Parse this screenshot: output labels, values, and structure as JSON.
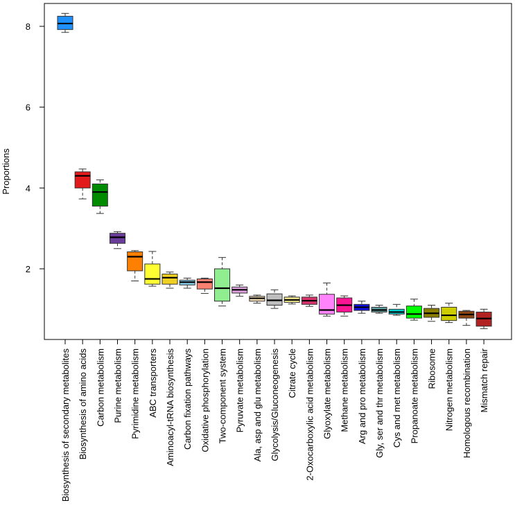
{
  "chart_data": {
    "type": "boxplot",
    "title": "",
    "xlabel": "",
    "ylabel": "Proportions",
    "ylim": [
      0.5,
      8.4
    ],
    "yticks": [
      2,
      4,
      6,
      8
    ],
    "categories": [
      {
        "label": "Biosynthesis of secondary metabolites",
        "color": "#1E90FF",
        "min": 7.85,
        "q1": 7.92,
        "median": 8.07,
        "q3": 8.25,
        "max": 8.32
      },
      {
        "label": "Biosynthesis of amino acids",
        "color": "#E31A1C",
        "min": 3.73,
        "q1": 4.0,
        "median": 4.3,
        "q3": 4.4,
        "max": 4.47
      },
      {
        "label": "Carbon metabolism",
        "color": "#008B00",
        "min": 3.37,
        "q1": 3.55,
        "median": 3.9,
        "q3": 4.1,
        "max": 4.2
      },
      {
        "label": "Purine metabolism",
        "color": "#6A3D9A",
        "min": 2.5,
        "q1": 2.63,
        "median": 2.78,
        "q3": 2.88,
        "max": 2.92
      },
      {
        "label": "Pyrimidine metabolism",
        "color": "#FF7F00",
        "min": 1.7,
        "q1": 1.95,
        "median": 2.3,
        "q3": 2.42,
        "max": 2.45
      },
      {
        "label": "ABC transporters",
        "color": "#FFFF33",
        "min": 1.57,
        "q1": 1.62,
        "median": 1.75,
        "q3": 2.12,
        "max": 2.43
      },
      {
        "label": "Aminoacyl-tRNA biosynthesis",
        "color": "#F0D020",
        "min": 1.52,
        "q1": 1.62,
        "median": 1.78,
        "q3": 1.87,
        "max": 1.92
      },
      {
        "label": "Carbon fixation pathways",
        "color": "#87CEEB",
        "min": 1.52,
        "q1": 1.6,
        "median": 1.67,
        "q3": 1.72,
        "max": 1.77
      },
      {
        "label": "Oxidative phosphorylation",
        "color": "#FA8072",
        "min": 1.39,
        "q1": 1.5,
        "median": 1.67,
        "q3": 1.75,
        "max": 1.77
      },
      {
        "label": "Two-component system",
        "color": "#90EE90",
        "min": 1.08,
        "q1": 1.2,
        "median": 1.52,
        "q3": 2.0,
        "max": 2.28
      },
      {
        "label": "Pyruvate metabolism",
        "color": "#DDA0DD",
        "min": 1.32,
        "q1": 1.4,
        "median": 1.48,
        "q3": 1.55,
        "max": 1.6
      },
      {
        "label": "Ala, asp and glu metabolism",
        "color": "#F5DEB3",
        "min": 1.15,
        "q1": 1.2,
        "median": 1.27,
        "q3": 1.32,
        "max": 1.35
      },
      {
        "label": "Glycolysis/Gluconeogenesis",
        "color": "#BEBEBE",
        "min": 1.02,
        "q1": 1.1,
        "median": 1.22,
        "q3": 1.38,
        "max": 1.48
      },
      {
        "label": "Citrate cycle",
        "color": "#F0E68C",
        "min": 1.13,
        "q1": 1.17,
        "median": 1.23,
        "q3": 1.3,
        "max": 1.33
      },
      {
        "label": "2-Oxocarboxylic acid metabolism",
        "color": "#D6336C",
        "min": 1.07,
        "q1": 1.12,
        "median": 1.21,
        "q3": 1.3,
        "max": 1.35
      },
      {
        "label": "Glyoxylate metabolism",
        "color": "#FF83FA",
        "min": 0.83,
        "q1": 0.88,
        "median": 0.98,
        "q3": 1.37,
        "max": 1.65
      },
      {
        "label": "Methane metabolism",
        "color": "#FF1493",
        "min": 0.83,
        "q1": 0.93,
        "median": 1.1,
        "q3": 1.28,
        "max": 1.33
      },
      {
        "label": "Arg and pro metabolism",
        "color": "#1010E0",
        "min": 0.9,
        "q1": 0.97,
        "median": 1.05,
        "q3": 1.12,
        "max": 1.2
      },
      {
        "label": "Gly, ser and thr metabolism",
        "color": "#5F9EA0",
        "min": 0.9,
        "q1": 0.93,
        "median": 0.98,
        "q3": 1.05,
        "max": 1.1
      },
      {
        "label": "Cys and met metabolism",
        "color": "#00CED1",
        "min": 0.85,
        "q1": 0.88,
        "median": 0.93,
        "q3": 1.0,
        "max": 1.12
      },
      {
        "label": "Propanoate metabolism",
        "color": "#00FF00",
        "min": 0.73,
        "q1": 0.78,
        "median": 0.88,
        "q3": 1.08,
        "max": 1.25
      },
      {
        "label": "Ribosome",
        "color": "#8B7D00",
        "min": 0.7,
        "q1": 0.8,
        "median": 0.9,
        "q3": 1.02,
        "max": 1.1
      },
      {
        "label": "Nitrogen metabolism",
        "color": "#CDCD00",
        "min": 0.67,
        "q1": 0.72,
        "median": 0.85,
        "q3": 1.05,
        "max": 1.15
      },
      {
        "label": "Homologous recombination",
        "color": "#8B4513",
        "min": 0.6,
        "q1": 0.78,
        "median": 0.87,
        "q3": 0.95,
        "max": 0.97
      },
      {
        "label": "Mismatch repair",
        "color": "#B22222",
        "min": 0.52,
        "q1": 0.58,
        "median": 0.77,
        "q3": 0.93,
        "max": 1.0
      }
    ]
  }
}
